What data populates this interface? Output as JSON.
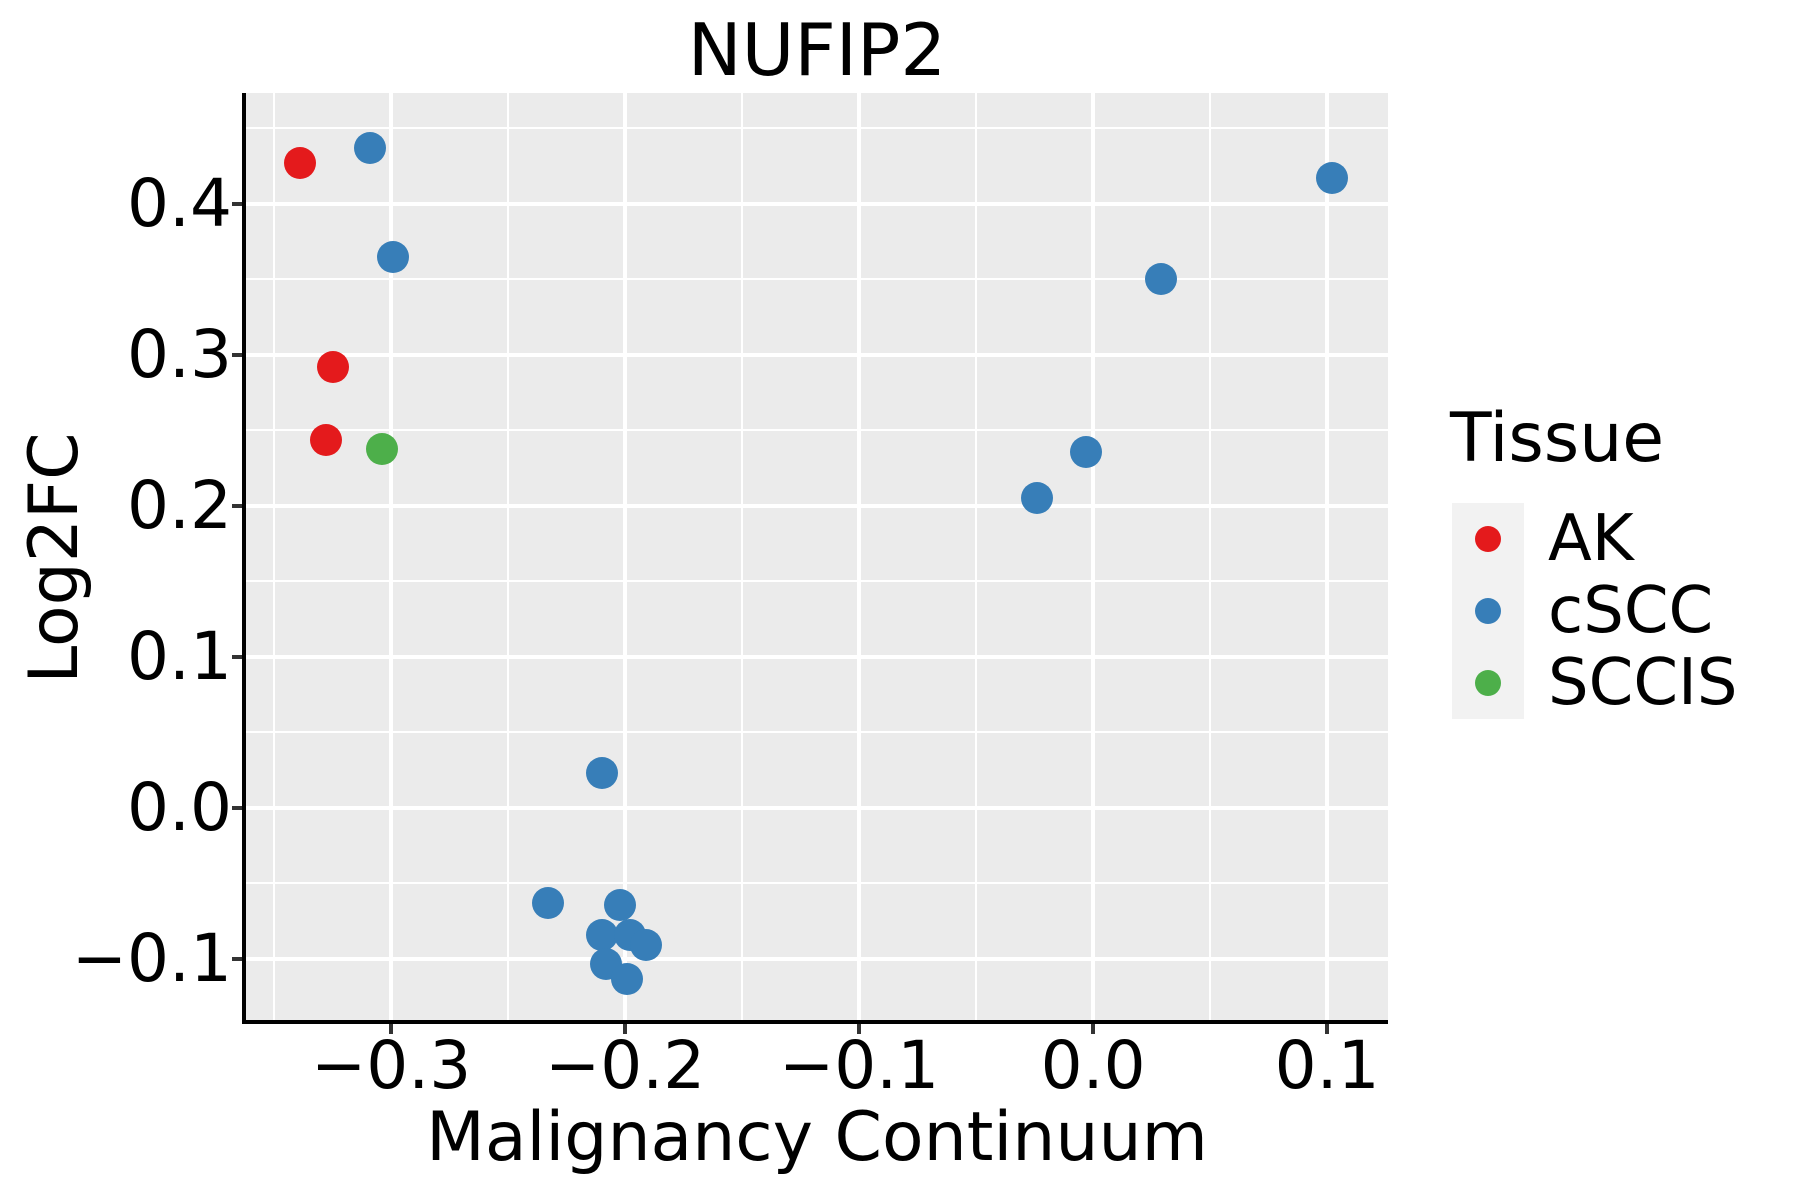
{
  "chart_data": {
    "type": "scatter",
    "title": "NUFIP2",
    "xlabel": "Malignancy Continuum",
    "ylabel": "Log2FC",
    "legend": {
      "title": "Tissue",
      "position": "right"
    },
    "grid": {
      "major": true,
      "minor": true
    },
    "xlim": [
      -0.362,
      0.126
    ],
    "ylim": [
      -0.1404,
      0.4735
    ],
    "x_ticks": [
      -0.3,
      -0.2,
      -0.1,
      0.0,
      0.1
    ],
    "x_tick_labels": [
      "−0.3",
      "−0.2",
      "−0.1",
      "0.0",
      "0.1"
    ],
    "y_ticks": [
      -0.1,
      0.0,
      0.1,
      0.2,
      0.3,
      0.4
    ],
    "y_tick_labels": [
      "−0.1",
      "0.0",
      "0.1",
      "0.2",
      "0.3",
      "0.4"
    ],
    "series": [
      {
        "name": "AK",
        "color": "#E41A1C",
        "points": [
          {
            "x": -0.339,
            "y": 0.427
          },
          {
            "x": -0.325,
            "y": 0.292
          },
          {
            "x": -0.328,
            "y": 0.244
          }
        ]
      },
      {
        "name": "cSCC",
        "color": "#377EB8",
        "points": [
          {
            "x": -0.309,
            "y": 0.437
          },
          {
            "x": -0.299,
            "y": 0.365
          },
          {
            "x": 0.102,
            "y": 0.417
          },
          {
            "x": 0.029,
            "y": 0.35
          },
          {
            "x": -0.003,
            "y": 0.236
          },
          {
            "x": -0.024,
            "y": 0.205
          },
          {
            "x": -0.21,
            "y": 0.023
          },
          {
            "x": -0.233,
            "y": -0.063
          },
          {
            "x": -0.202,
            "y": -0.064
          },
          {
            "x": -0.21,
            "y": -0.084
          },
          {
            "x": -0.198,
            "y": -0.084
          },
          {
            "x": -0.191,
            "y": -0.091
          },
          {
            "x": -0.208,
            "y": -0.103
          },
          {
            "x": -0.199,
            "y": -0.113
          }
        ]
      },
      {
        "name": "SCCIS",
        "color": "#4DAF4A",
        "points": [
          {
            "x": -0.304,
            "y": 0.238
          }
        ]
      }
    ],
    "colors": {
      "panel_bg": "#EBEBEB",
      "grid": "#FFFFFF",
      "axis_line": "#000000",
      "tick_mark": "#333333",
      "text": "#000000",
      "legend_key_bg": "#F2F2F2",
      "background": "#FFFFFF"
    }
  }
}
